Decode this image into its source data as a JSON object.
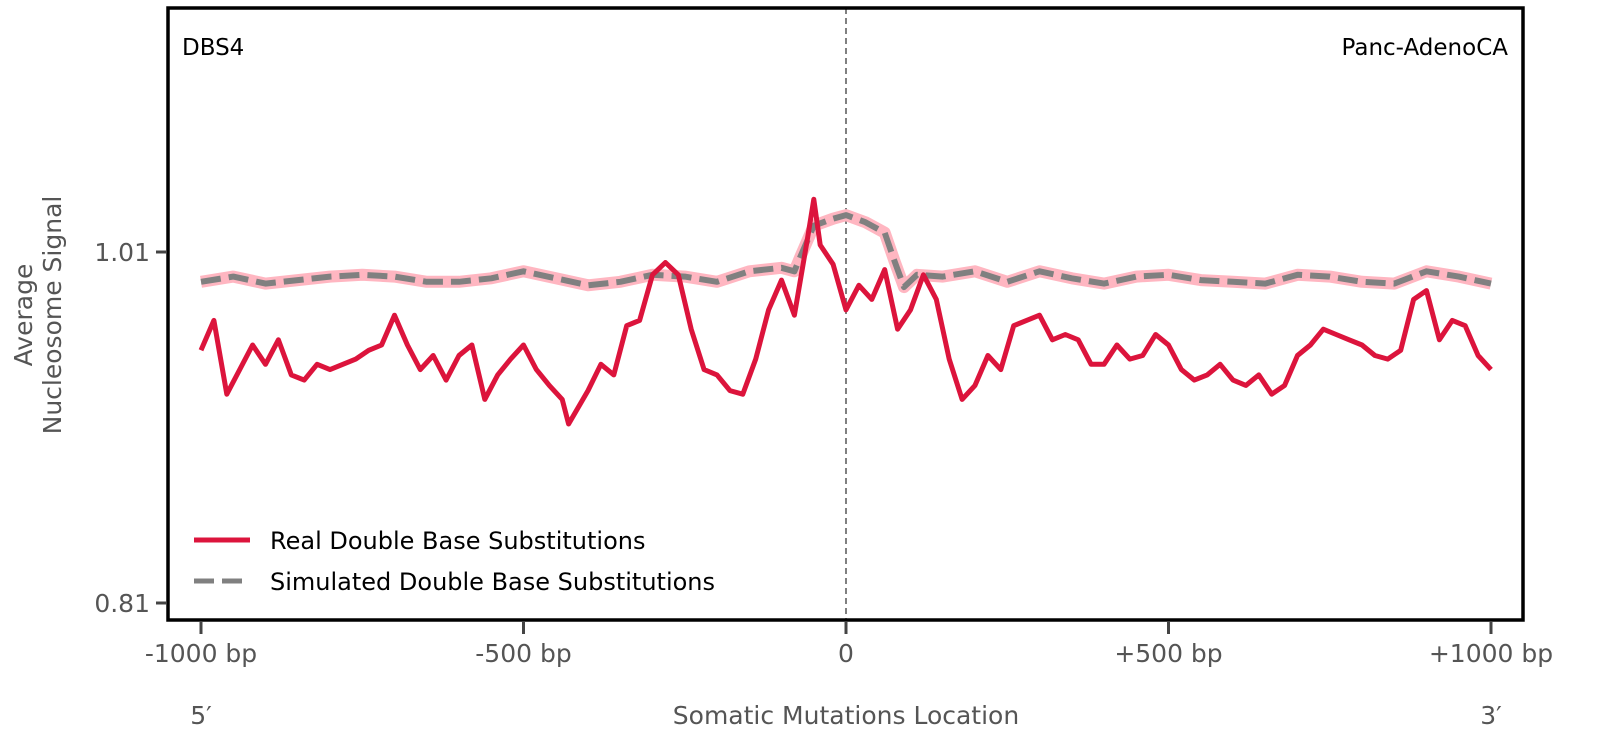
{
  "chart_data": {
    "type": "line",
    "title": "",
    "signature": "DBS4",
    "cancer_type": "Panc-AdenoCA",
    "xlabel": "Somatic Mutations Location",
    "ylabel_lines": [
      "Average",
      "Nucleosome Signal"
    ],
    "xlim": [
      -1000,
      1000
    ],
    "ylim": [
      0.8,
      1.15
    ],
    "x_ticks": [
      -1000,
      -500,
      0,
      500,
      1000
    ],
    "x_tick_labels": [
      "-1000 bp",
      "-500 bp",
      "0",
      "+500 bp",
      "+1000 bp"
    ],
    "y_ticks": [
      1.01,
      0.81
    ],
    "y_tick_labels": [
      "1.01",
      "0.81"
    ],
    "end_labels": {
      "left": "5′",
      "right": "3′"
    },
    "center_line_x": 0,
    "grid": false,
    "legend_position": "lower-left",
    "colors": {
      "real": "#dc143c",
      "simulated": "#808080",
      "simulated_band": "#ffb6c1",
      "center_line": "#808080"
    },
    "series": [
      {
        "name": "Real Double Base Substitutions",
        "style": "solid",
        "x": [
          -1000,
          -980,
          -960,
          -940,
          -920,
          -900,
          -880,
          -860,
          -840,
          -820,
          -800,
          -780,
          -760,
          -740,
          -720,
          -700,
          -680,
          -660,
          -640,
          -620,
          -600,
          -580,
          -560,
          -540,
          -520,
          -500,
          -480,
          -460,
          -440,
          -430,
          -400,
          -380,
          -360,
          -340,
          -320,
          -300,
          -280,
          -260,
          -240,
          -220,
          -200,
          -180,
          -160,
          -140,
          -120,
          -100,
          -80,
          -60,
          -50,
          -40,
          -20,
          0,
          20,
          40,
          60,
          80,
          100,
          120,
          140,
          160,
          180,
          200,
          220,
          240,
          260,
          280,
          300,
          320,
          340,
          360,
          380,
          400,
          420,
          440,
          460,
          480,
          500,
          520,
          540,
          560,
          580,
          600,
          620,
          640,
          660,
          680,
          700,
          720,
          740,
          760,
          780,
          800,
          820,
          840,
          860,
          880,
          900,
          920,
          940,
          960,
          980,
          1000
        ],
        "values": [
          0.954,
          0.971,
          0.929,
          0.943,
          0.957,
          0.946,
          0.96,
          0.94,
          0.937,
          0.946,
          0.943,
          0.946,
          0.949,
          0.954,
          0.957,
          0.974,
          0.957,
          0.943,
          0.951,
          0.937,
          0.951,
          0.957,
          0.926,
          0.94,
          0.949,
          0.957,
          0.943,
          0.934,
          0.926,
          0.912,
          0.931,
          0.946,
          0.94,
          0.968,
          0.971,
          0.997,
          1.004,
          0.997,
          0.966,
          0.943,
          0.94,
          0.931,
          0.929,
          0.949,
          0.977,
          0.994,
          0.974,
          1.017,
          1.04,
          1.014,
          1.003,
          0.977,
          0.991,
          0.983,
          1.0,
          0.966,
          0.977,
          0.997,
          0.983,
          0.949,
          0.926,
          0.934,
          0.951,
          0.943,
          0.968,
          0.971,
          0.974,
          0.96,
          0.963,
          0.96,
          0.946,
          0.946,
          0.957,
          0.949,
          0.951,
          0.963,
          0.957,
          0.943,
          0.937,
          0.94,
          0.946,
          0.937,
          0.934,
          0.94,
          0.929,
          0.934,
          0.951,
          0.957,
          0.966,
          0.963,
          0.96,
          0.957,
          0.951,
          0.949,
          0.954,
          0.983,
          0.988,
          0.96,
          0.971,
          0.968,
          0.951,
          0.943
        ]
      },
      {
        "name": "Simulated Double Base Substitutions",
        "style": "dashed",
        "x": [
          -1000,
          -950,
          -900,
          -850,
          -800,
          -750,
          -700,
          -650,
          -600,
          -550,
          -500,
          -450,
          -400,
          -350,
          -300,
          -250,
          -200,
          -150,
          -100,
          -80,
          -70,
          -50,
          -20,
          0,
          30,
          60,
          75,
          90,
          110,
          150,
          200,
          250,
          300,
          350,
          400,
          450,
          500,
          550,
          600,
          650,
          700,
          750,
          800,
          850,
          900,
          950,
          1000
        ],
        "values": [
          0.993,
          0.996,
          0.992,
          0.994,
          0.996,
          0.997,
          0.996,
          0.993,
          0.993,
          0.995,
          0.999,
          0.995,
          0.991,
          0.993,
          0.997,
          0.996,
          0.993,
          0.999,
          1.001,
          0.999,
          1.008,
          1.025,
          1.029,
          1.031,
          1.027,
          1.021,
          1.005,
          0.99,
          0.997,
          0.996,
          0.999,
          0.993,
          0.999,
          0.995,
          0.992,
          0.996,
          0.997,
          0.994,
          0.993,
          0.992,
          0.997,
          0.996,
          0.993,
          0.992,
          0.999,
          0.996,
          0.992
        ]
      }
    ]
  }
}
